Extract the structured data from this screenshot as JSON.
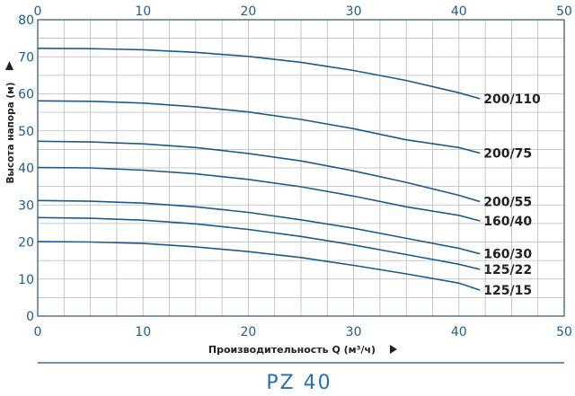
{
  "chart_data": {
    "type": "line",
    "title": "PZ 40",
    "xlabel": "Производительность Q (м³/ч)",
    "ylabel": "Высота напора (м)",
    "xlim": [
      0,
      50
    ],
    "ylim": [
      0,
      80
    ],
    "x_ticks": [
      "0",
      "10",
      "20",
      "30",
      "40",
      "50"
    ],
    "y_ticks": [
      "0",
      "10",
      "20",
      "30",
      "40",
      "50",
      "60",
      "70",
      "80"
    ],
    "grid": true,
    "series": [
      {
        "name": "200/110",
        "x": [
          0,
          5,
          10,
          15,
          20,
          25,
          30,
          35,
          40,
          42
        ],
        "y": [
          72.3,
          72.2,
          71.9,
          71.2,
          70.1,
          68.5,
          66.3,
          63.6,
          60.3,
          58.7
        ]
      },
      {
        "name": "200/75",
        "x": [
          0,
          5,
          10,
          15,
          20,
          25,
          30,
          35,
          40,
          42
        ],
        "y": [
          58.1,
          58.0,
          57.5,
          56.5,
          55.1,
          53.1,
          50.6,
          47.6,
          45.5,
          44.0
        ]
      },
      {
        "name": "200/55",
        "x": [
          0,
          5,
          10,
          15,
          20,
          25,
          30,
          35,
          40,
          42
        ],
        "y": [
          47.2,
          47.0,
          46.5,
          45.5,
          43.9,
          41.9,
          39.2,
          36.1,
          32.6,
          30.9
        ]
      },
      {
        "name": "160/40",
        "x": [
          0,
          5,
          10,
          15,
          20,
          25,
          30,
          35,
          40,
          42
        ],
        "y": [
          40.1,
          40.0,
          39.4,
          38.4,
          36.9,
          34.9,
          32.4,
          29.5,
          27.2,
          25.7
        ]
      },
      {
        "name": "160/30",
        "x": [
          0,
          5,
          10,
          15,
          20,
          25,
          30,
          35,
          40,
          42
        ],
        "y": [
          31.2,
          31.0,
          30.5,
          29.5,
          28.0,
          26.0,
          23.7,
          21.0,
          18.3,
          16.8
        ]
      },
      {
        "name": "125/22",
        "x": [
          0,
          5,
          10,
          15,
          20,
          25,
          30,
          35,
          40,
          42
        ],
        "y": [
          26.6,
          26.4,
          25.9,
          24.9,
          23.4,
          21.5,
          19.2,
          16.6,
          14.0,
          12.6
        ]
      },
      {
        "name": "125/15",
        "x": [
          0,
          5,
          10,
          15,
          20,
          25,
          30,
          35,
          40,
          42
        ],
        "y": [
          20.1,
          20.0,
          19.6,
          18.7,
          17.4,
          15.8,
          13.7,
          11.4,
          8.9,
          7.0
        ]
      }
    ],
    "colors": {
      "curve": "#1b5a8e",
      "tick": "#1f5c8f",
      "grid": "#b8b8b8",
      "frame": "#2a4f73"
    }
  }
}
